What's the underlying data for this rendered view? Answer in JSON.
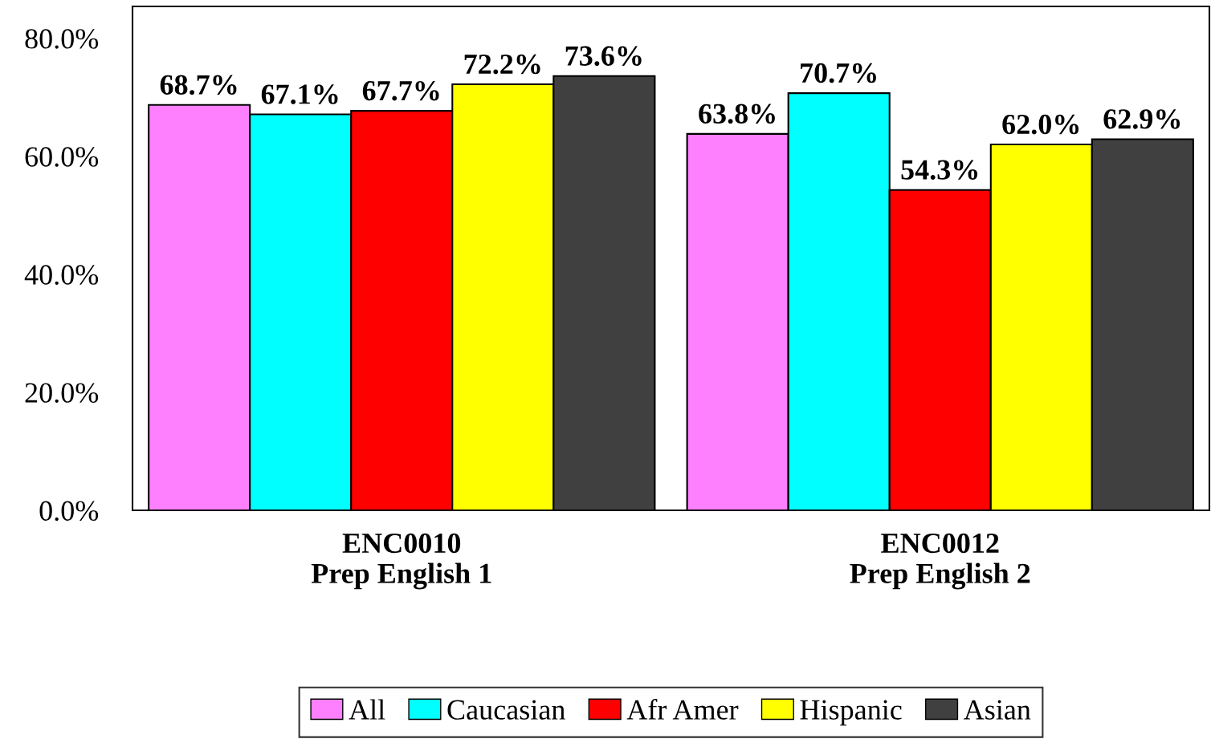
{
  "chart_data": {
    "type": "bar",
    "categories": [
      "ENC0010\nPrep English 1",
      "ENC0012\nPrep English 2"
    ],
    "series": [
      {
        "name": "All",
        "color": "#ff80ff",
        "values": [
          68.7,
          63.8
        ],
        "value_labels": [
          "68.7%",
          "63.8%"
        ]
      },
      {
        "name": "Caucasian",
        "color": "#00ffff",
        "values": [
          67.1,
          70.7
        ],
        "value_labels": [
          "67.1%",
          "70.7%"
        ]
      },
      {
        "name": "Afr Amer",
        "color": "#ff0000",
        "values": [
          67.7,
          54.3
        ],
        "value_labels": [
          "67.7%",
          "54.3%"
        ]
      },
      {
        "name": "Hispanic",
        "color": "#ffff00",
        "values": [
          72.2,
          62.0
        ],
        "value_labels": [
          "72.2%",
          "62.0%"
        ]
      },
      {
        "name": "Asian",
        "color": "#404040",
        "values": [
          73.6,
          62.9
        ],
        "value_labels": [
          "73.6%",
          "62.9%"
        ]
      }
    ],
    "ylim": [
      0,
      85.4
    ],
    "yticks": [
      {
        "value": 0,
        "label": "0.0%"
      },
      {
        "value": 20,
        "label": "20.0%"
      },
      {
        "value": 40,
        "label": "40.0%"
      },
      {
        "value": 60,
        "label": "60.0%"
      },
      {
        "value": 80,
        "label": "80.0%"
      }
    ],
    "grid": false,
    "legend": "bottom"
  }
}
